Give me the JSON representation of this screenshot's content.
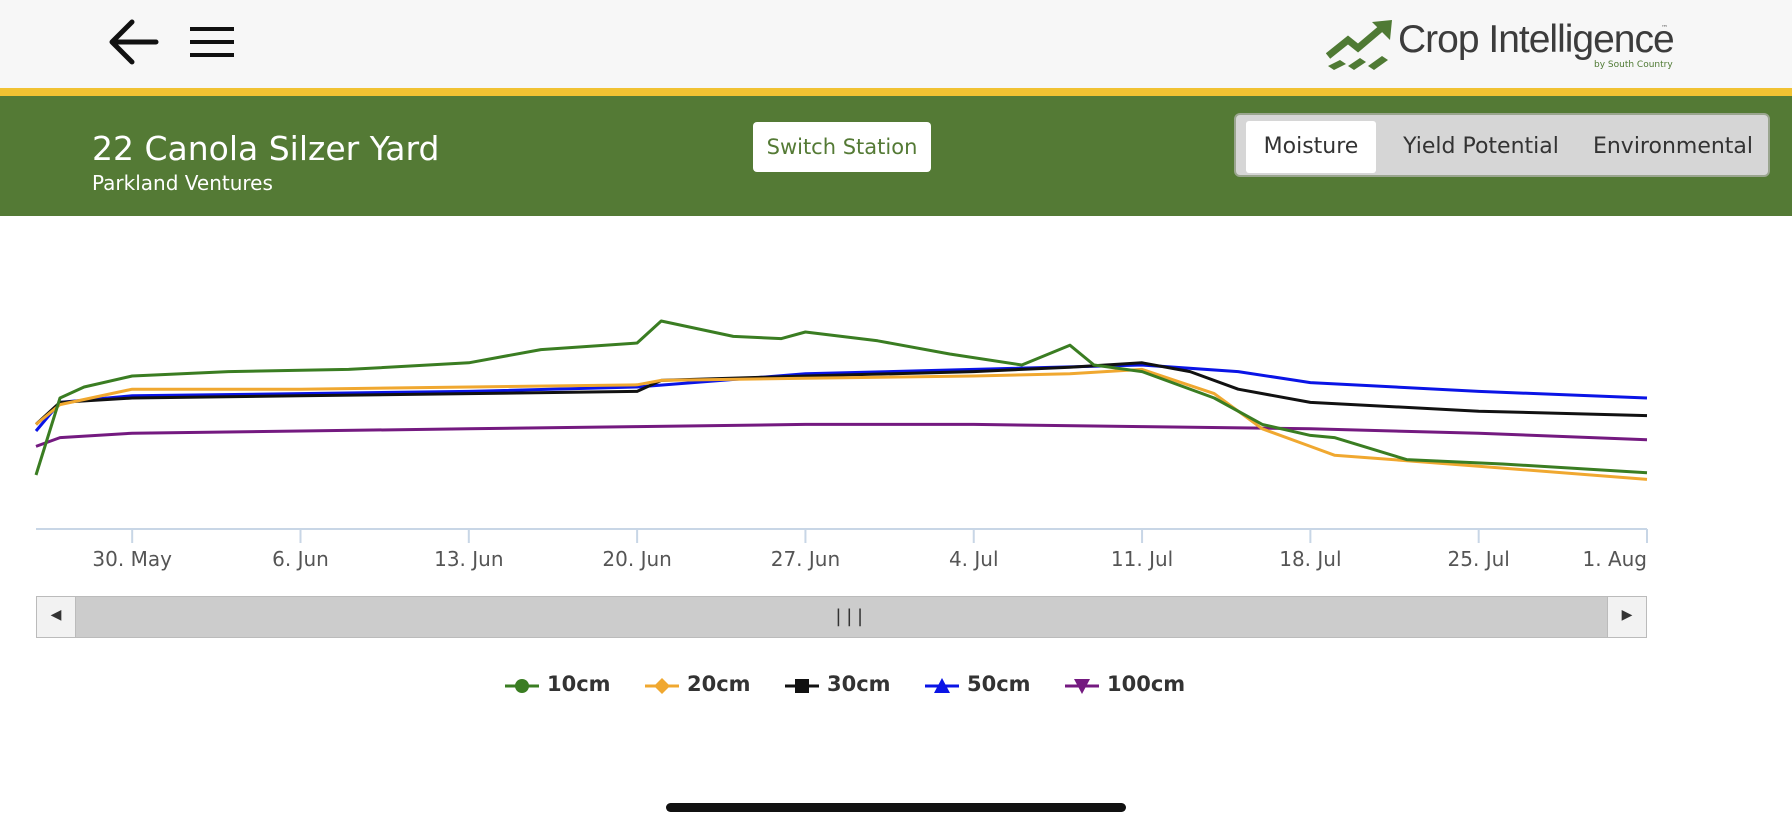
{
  "header": {
    "back_icon": "arrow-left-icon",
    "menu_icon": "hamburger-menu-icon",
    "logo": {
      "name": "Crop Intelligence",
      "trademark": "™",
      "tagline": "by South Country",
      "icon": "rising-chart-arrow-icon",
      "color": "#4f7a34"
    }
  },
  "station": {
    "title": "22 Canola Silzer Yard",
    "subtitle": "Parkland Ventures",
    "switch_label": "Switch Station",
    "bar_color": "#547a35",
    "accent_stripe_color": "#f1c232"
  },
  "tabs": [
    {
      "label": "Moisture",
      "active": true
    },
    {
      "label": "Yield Potential",
      "active": false
    },
    {
      "label": "Environmental",
      "active": false
    }
  ],
  "scrollbar": {
    "left_icon": "caret-left-icon",
    "right_icon": "caret-right-icon",
    "grip": "|||"
  },
  "chart_data": {
    "type": "line",
    "title": "",
    "xlabel": "",
    "ylabel": "",
    "x_ticks": [
      "30. May",
      "6. Jun",
      "13. Jun",
      "20. Jun",
      "27. Jun",
      "4. Jul",
      "11. Jul",
      "18. Jul",
      "25. Jul",
      "1. Aug"
    ],
    "x_range": [
      "May 26",
      "Aug 1"
    ],
    "grid": false,
    "legend_position": "bottom-center",
    "series": [
      {
        "name": "10cm",
        "color": "#3a7d22",
        "marker": "circle",
        "x": [
          "May 26",
          "May 27",
          "May 28",
          "May 30",
          "Jun 3",
          "Jun 8",
          "Jun 13",
          "Jun 16",
          "Jun 20",
          "Jun 21",
          "Jun 24",
          "Jun 26",
          "Jun 27",
          "Jun 30",
          "Jul 3",
          "Jul 6",
          "Jul 8",
          "Jul 9",
          "Jul 11",
          "Jul 14",
          "Jul 16",
          "Jul 18",
          "Jul 19",
          "Jul 22",
          "Jul 26",
          "Aug 1"
        ],
        "values": [
          0.95,
          0.6,
          0.55,
          0.5,
          0.48,
          0.47,
          0.44,
          0.38,
          0.35,
          0.25,
          0.32,
          0.33,
          0.3,
          0.34,
          0.4,
          0.45,
          0.36,
          0.45,
          0.48,
          0.6,
          0.72,
          0.77,
          0.78,
          0.88,
          0.9,
          0.94
        ]
      },
      {
        "name": "20cm",
        "color": "#f0a830",
        "marker": "diamond",
        "x": [
          "May 26",
          "May 27",
          "May 30",
          "Jun 6",
          "Jun 13",
          "Jun 20",
          "Jun 21",
          "Jun 27",
          "Jul 4",
          "Jul 8",
          "Jul 11",
          "Jul 14",
          "Jul 16",
          "Jul 18",
          "Jul 19",
          "Jul 25",
          "Aug 1"
        ],
        "values": [
          0.72,
          0.63,
          0.56,
          0.56,
          0.55,
          0.54,
          0.52,
          0.51,
          0.5,
          0.49,
          0.47,
          0.58,
          0.74,
          0.82,
          0.86,
          0.91,
          0.97
        ]
      },
      {
        "name": "30cm",
        "color": "#111111",
        "marker": "square",
        "x": [
          "May 26",
          "May 27",
          "May 30",
          "Jun 6",
          "Jun 13",
          "Jun 20",
          "Jun 21",
          "Jun 27",
          "Jul 4",
          "Jul 8",
          "Jul 11",
          "Jul 13",
          "Jul 15",
          "Jul 18",
          "Jul 25",
          "Aug 1"
        ],
        "values": [
          0.72,
          0.62,
          0.6,
          0.59,
          0.58,
          0.57,
          0.52,
          0.5,
          0.48,
          0.46,
          0.44,
          0.48,
          0.56,
          0.62,
          0.66,
          0.68
        ]
      },
      {
        "name": "50cm",
        "color": "#0a14e6",
        "marker": "triangle-up",
        "x": [
          "May 26",
          "May 27",
          "May 30",
          "Jun 6",
          "Jun 13",
          "Jun 20",
          "Jun 27",
          "Jul 4",
          "Jul 11",
          "Jul 15",
          "Jul 18",
          "Jul 25",
          "Aug 1"
        ],
        "values": [
          0.75,
          0.62,
          0.59,
          0.58,
          0.57,
          0.55,
          0.49,
          0.47,
          0.45,
          0.48,
          0.53,
          0.57,
          0.6
        ]
      },
      {
        "name": "100cm",
        "color": "#741a80",
        "marker": "triangle-down",
        "x": [
          "May 26",
          "May 27",
          "May 30",
          "Jun 6",
          "Jun 13",
          "Jun 20",
          "Jun 27",
          "Jul 4",
          "Jul 11",
          "Jul 18",
          "Jul 25",
          "Aug 1"
        ],
        "values": [
          0.82,
          0.78,
          0.76,
          0.75,
          0.74,
          0.73,
          0.72,
          0.72,
          0.73,
          0.74,
          0.76,
          0.79
        ]
      }
    ]
  }
}
